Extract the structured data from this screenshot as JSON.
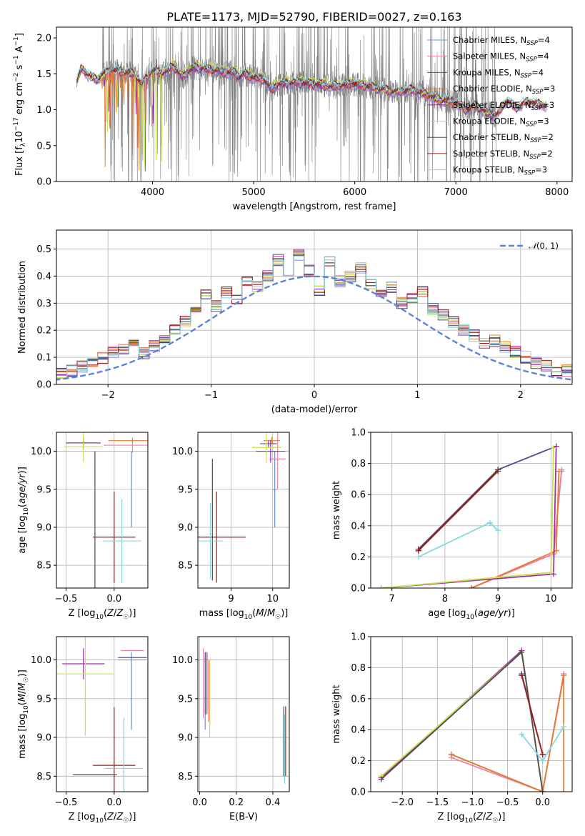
{
  "page_title": "PLATE=1173, MJD=52790, FIBERID=0027, z=0.163",
  "colors": {
    "Chabrier MILES": "#6a8fd8",
    "Salpeter MILES": "#f07fa8",
    "Kroupa MILES": "#4d4d8f",
    "Chabrier ELODIE": "#e87a2a",
    "Salpeter ELODIE": "#a12ca6",
    "Kroupa ELODIE": "#c8e24a",
    "Chabrier STELIB": "#4d4d4d",
    "Salpeter STELIB": "#a11b1b",
    "Kroupa STELIB": "#86d8e0",
    "data": "#808080",
    "normal": "#5b84d8"
  },
  "chart_data": [
    {
      "id": "spectrum",
      "type": "line",
      "title": "PLATE=1173, MJD=52790, FIBERID=0027, z=0.163",
      "xlabel": "wavelength [Angstrom, rest frame]",
      "ylabel": "Flux [f_λ 10^-17 erg cm^-2 s^-1 A^-1]",
      "xlim": [
        3050,
        8150
      ],
      "ylim": [
        0,
        2.15
      ],
      "xticks": [
        4000,
        5000,
        6000,
        7000,
        8000
      ],
      "yticks": [
        0.0,
        0.5,
        1.0,
        1.5,
        2.0
      ],
      "legend_position": "upper-right",
      "legend": [
        {
          "name": "Chabrier MILES",
          "nssp": "4"
        },
        {
          "name": "Salpeter MILES",
          "nssp": "4"
        },
        {
          "name": "Kroupa MILES",
          "nssp": "4"
        },
        {
          "name": "Chabrier ELODIE",
          "nssp": "3"
        },
        {
          "name": "Salpeter ELODIE",
          "nssp": "3"
        },
        {
          "name": "Kroupa ELODIE",
          "nssp": "3"
        },
        {
          "name": "Chabrier STELIB",
          "nssp": "2"
        },
        {
          "name": "Salpeter STELIB",
          "nssp": "2"
        },
        {
          "name": "Kroupa STELIB",
          "nssp": "3"
        }
      ],
      "continuum": {
        "x": [
          3250,
          3300,
          3350,
          3400,
          3450,
          3500,
          3600,
          3700,
          3800,
          3900,
          4000,
          4100,
          4200,
          4300,
          4400,
          4500,
          4600,
          4700,
          4800,
          4861,
          4900,
          5000,
          5100,
          5175,
          5250,
          5400,
          5600,
          5800,
          6000,
          6200,
          6400,
          6563,
          6700,
          6800,
          6900,
          7000,
          7100,
          7200,
          7300,
          7400,
          7500,
          7600,
          7700,
          7800,
          7900
        ],
        "y": [
          1.38,
          1.58,
          1.5,
          1.45,
          1.42,
          1.48,
          1.55,
          1.52,
          1.5,
          1.35,
          1.55,
          1.5,
          1.6,
          1.45,
          1.58,
          1.57,
          1.55,
          1.52,
          1.52,
          1.45,
          1.5,
          1.45,
          1.42,
          1.28,
          1.35,
          1.38,
          1.35,
          1.32,
          1.36,
          1.3,
          1.25,
          1.27,
          1.22,
          1.15,
          1.12,
          1.1,
          1.0,
          1.05,
          0.95,
          0.92,
          1.12,
          1.02,
          1.12,
          1.08,
          1.05
        ]
      },
      "data_noise_start": 3500,
      "data_noise_end": 7400
    },
    {
      "id": "residuals",
      "type": "histogram",
      "xlabel": "(data-model)/error",
      "ylabel": "Normed distribution",
      "xlim": [
        -2.5,
        2.5
      ],
      "ylim": [
        0,
        0.57
      ],
      "xticks": [
        -2,
        -1,
        0,
        1,
        2
      ],
      "yticks": [
        0.0,
        0.1,
        0.2,
        0.3,
        0.4,
        0.5
      ],
      "legend_position": "upper-right",
      "legend": [
        {
          "name": "N(0,1)",
          "style": "dashed"
        }
      ],
      "bin_width": 0.1,
      "values": [
        0.018,
        0.012,
        0.024,
        0.02,
        0.028,
        0.035,
        0.042,
        0.04,
        0.05,
        0.066,
        0.075,
        0.098,
        0.12,
        0.13,
        0.15,
        0.115,
        0.14,
        0.165,
        0.2,
        0.23,
        0.28,
        0.33,
        0.29,
        0.34,
        0.31,
        0.38,
        0.36,
        0.4,
        0.46,
        0.42,
        0.48,
        0.42,
        0.35,
        0.45,
        0.38,
        0.4,
        0.43,
        0.37,
        0.33,
        0.36,
        0.3,
        0.32,
        0.34,
        0.28,
        0.26,
        0.23,
        0.2,
        0.18,
        0.15,
        0.16,
        0.14,
        0.12,
        0.1,
        0.08,
        0.07,
        0.05,
        0.05,
        0.045,
        0.08,
        0.09,
        0.05,
        0.04,
        0.03,
        0.025,
        0.04,
        0.03,
        0.02
      ],
      "hist_x0": -3.2
    },
    {
      "id": "z-age",
      "type": "errorbar",
      "xlabel": "Z [log10(Z/Z☉)]",
      "ylabel": "age [log10(age/yr)]",
      "xlim": [
        -0.6,
        0.35
      ],
      "ylim": [
        8.2,
        10.25
      ],
      "xticks": [
        -0.5,
        0.0
      ],
      "yticks": [
        8.5,
        9.0,
        9.5,
        10.0
      ],
      "points": [
        {
          "model": "Chabrier MILES",
          "x": 0.18,
          "y": 9.5,
          "xerr": 0.0,
          "yerr": 0.5
        },
        {
          "model": "Salpeter MILES",
          "x": 0.19,
          "y": 10.08,
          "xerr": 0.3,
          "yerr": 0.1
        },
        {
          "model": "Kroupa MILES",
          "x": -0.32,
          "y": 10.1,
          "xerr": 0.0,
          "yerr": 0.08
        },
        {
          "model": "Chabrier ELODIE",
          "x": 0.19,
          "y": 10.14,
          "xerr": 0.25,
          "yerr": 0.03
        },
        {
          "model": "Salpeter ELODIE",
          "x": -0.32,
          "y": 10.11,
          "xerr": 0.18,
          "yerr": 0.05
        },
        {
          "model": "Kroupa ELODIE",
          "x": -0.32,
          "y": 10.06,
          "xerr": 0.2,
          "yerr": 0.2
        },
        {
          "model": "Chabrier STELIB",
          "x": -0.2,
          "y": 9.1,
          "xerr": 0.0,
          "yerr": 0.9
        },
        {
          "model": "Salpeter STELIB",
          "x": 0.0,
          "y": 8.87,
          "xerr": 0.22,
          "yerr": 0.6
        },
        {
          "model": "Kroupa STELIB",
          "x": 0.08,
          "y": 8.82,
          "xerr": 0.2,
          "yerr": 0.55
        }
      ]
    },
    {
      "id": "mass-age",
      "type": "errorbar",
      "xlabel": "mass [log10(M/M☉)]",
      "ylabel": "",
      "xlim": [
        8.2,
        10.4
      ],
      "ylim": [
        8.2,
        10.25
      ],
      "xticks": [
        9,
        10
      ],
      "yticks": [
        8.5,
        9.0,
        9.5,
        10.0
      ],
      "points": [
        {
          "model": "Chabrier MILES",
          "x": 10.05,
          "y": 9.5,
          "xerr": 0.05,
          "yerr": 0.5
        },
        {
          "model": "Salpeter MILES",
          "x": 10.12,
          "y": 9.9,
          "xerr": 0.2,
          "yerr": 0.4
        },
        {
          "model": "Kroupa MILES",
          "x": 9.9,
          "y": 10.1,
          "xerr": 0.2,
          "yerr": 0.05
        },
        {
          "model": "Chabrier ELODIE",
          "x": 9.98,
          "y": 10.14,
          "xerr": 0.2,
          "yerr": 0.05
        },
        {
          "model": "Salpeter ELODIE",
          "x": 9.95,
          "y": 10.0,
          "xerr": 0.35,
          "yerr": 0.15
        },
        {
          "model": "Kroupa ELODIE",
          "x": 9.85,
          "y": 10.05,
          "xerr": 0.35,
          "yerr": 0.2
        },
        {
          "model": "Chabrier STELIB",
          "x": 8.55,
          "y": 9.1,
          "xerr": 0.0,
          "yerr": 0.8
        },
        {
          "model": "Salpeter STELIB",
          "x": 8.65,
          "y": 8.87,
          "xerr": 0.7,
          "yerr": 0.6
        },
        {
          "model": "Kroupa STELIB",
          "x": 8.5,
          "y": 8.82,
          "xerr": 0.3,
          "yerr": 0.5
        }
      ]
    },
    {
      "id": "age-weight",
      "type": "line",
      "xlabel": "age [log10(age/yr)]",
      "ylabel": "mass weight",
      "xlim": [
        6.6,
        10.4
      ],
      "ylim": [
        0,
        1.0
      ],
      "xticks": [
        7,
        8,
        9,
        10
      ],
      "yticks": [
        0.0,
        0.2,
        0.4,
        0.6,
        0.8,
        1.0
      ],
      "series": [
        {
          "model": "Chabrier MILES",
          "x": [
            8.5,
            10.05,
            10.2
          ],
          "y": [
            0.0,
            0.22,
            0.75
          ]
        },
        {
          "model": "Salpeter MILES",
          "x": [
            8.5,
            10.05,
            10.2
          ],
          "y": [
            0.0,
            0.22,
            0.76
          ]
        },
        {
          "model": "Kroupa MILES",
          "x": [
            7.5,
            9.0,
            10.1
          ],
          "y": [
            0.24,
            0.76,
            0.91
          ]
        },
        {
          "model": "Chabrier ELODIE",
          "x": [
            8.5,
            10.1,
            10.15
          ],
          "y": [
            0.0,
            0.24,
            0.75
          ]
        },
        {
          "model": "Salpeter ELODIE",
          "x": [
            6.8,
            10.05,
            10.1
          ],
          "y": [
            0.0,
            0.09,
            0.91
          ]
        },
        {
          "model": "Kroupa ELODIE",
          "x": [
            6.8,
            10.0,
            10.05
          ],
          "y": [
            0.0,
            0.1,
            0.9
          ]
        },
        {
          "model": "Chabrier STELIB",
          "x": [
            7.5,
            9.0
          ],
          "y": [
            0.25,
            0.76
          ]
        },
        {
          "model": "Salpeter STELIB",
          "x": [
            7.5,
            9.0
          ],
          "y": [
            0.24,
            0.75
          ]
        },
        {
          "model": "Kroupa STELIB",
          "x": [
            7.5,
            8.85,
            9.0
          ],
          "y": [
            0.2,
            0.42,
            0.37
          ]
        }
      ]
    },
    {
      "id": "z-mass",
      "type": "errorbar",
      "xlabel": "Z [log10(Z/Z☉)]",
      "ylabel": "mass [log10(M/M☉)]",
      "xlim": [
        -0.6,
        0.35
      ],
      "ylim": [
        8.3,
        10.3
      ],
      "xticks": [
        -0.5,
        0.0
      ],
      "yticks": [
        8.5,
        9.0,
        9.5,
        10.0
      ],
      "points": [
        {
          "model": "Chabrier MILES",
          "x": 0.18,
          "y": 9.6,
          "xerr": 0.0,
          "yerr": 0.5
        },
        {
          "model": "Salpeter MILES",
          "x": 0.19,
          "y": 10.12,
          "xerr": 0.12,
          "yerr": 0.0
        },
        {
          "model": "Kroupa MILES",
          "x": 0.19,
          "y": 10.03,
          "xerr": 0.15,
          "yerr": 0.0
        },
        {
          "model": "Chabrier ELODIE",
          "x": 0.19,
          "y": 10.0,
          "xerr": 0.15,
          "yerr": 0.0
        },
        {
          "model": "Salpeter ELODIE",
          "x": -0.32,
          "y": 9.95,
          "xerr": 0.22,
          "yerr": 0.2
        },
        {
          "model": "Kroupa ELODIE",
          "x": -0.3,
          "y": 9.82,
          "xerr": 0.3,
          "yerr": 0.8
        },
        {
          "model": "Chabrier STELIB",
          "x": -0.2,
          "y": 8.52,
          "xerr": 0.23,
          "yerr": 0.0
        },
        {
          "model": "Salpeter STELIB",
          "x": 0.0,
          "y": 8.64,
          "xerr": 0.22,
          "yerr": 0.75
        },
        {
          "model": "Kroupa STELIB",
          "x": 0.1,
          "y": 8.6,
          "xerr": 0.2,
          "yerr": 0.65
        }
      ]
    },
    {
      "id": "ebv-mass",
      "type": "errorbar",
      "xlabel": "E(B-V)",
      "ylabel": "",
      "xlim": [
        -0.01,
        0.49
      ],
      "ylim": [
        8.3,
        10.3
      ],
      "xticks": [
        0.0,
        0.2,
        0.4
      ],
      "yticks": [
        8.5,
        9.0,
        9.5,
        10.0
      ],
      "points": [
        {
          "model": "Chabrier MILES",
          "x": 0.03,
          "y": 9.6,
          "xerr": 0.0,
          "yerr": 0.5
        },
        {
          "model": "Salpeter MILES",
          "x": 0.02,
          "y": 9.7,
          "xerr": 0.0,
          "yerr": 0.45
        },
        {
          "model": "Kroupa MILES",
          "x": 0.03,
          "y": 9.7,
          "xerr": 0.0,
          "yerr": 0.4
        },
        {
          "model": "Chabrier ELODIE",
          "x": 0.05,
          "y": 9.6,
          "xerr": 0.0,
          "yerr": 0.4
        },
        {
          "model": "Salpeter ELODIE",
          "x": 0.04,
          "y": 9.7,
          "xerr": 0.0,
          "yerr": 0.4
        },
        {
          "model": "Kroupa ELODIE",
          "x": 0.055,
          "y": 9.5,
          "xerr": 0.0,
          "yerr": 0.5
        },
        {
          "model": "Chabrier STELIB",
          "x": 0.46,
          "y": 8.95,
          "xerr": 0.0,
          "yerr": 0.45
        },
        {
          "model": "Salpeter STELIB",
          "x": 0.47,
          "y": 8.95,
          "xerr": 0.0,
          "yerr": 0.45
        },
        {
          "model": "Kroupa STELIB",
          "x": 0.465,
          "y": 8.85,
          "xerr": 0.0,
          "yerr": 0.45
        }
      ]
    },
    {
      "id": "z-weight",
      "type": "line",
      "xlabel": "Z [log10(Z/Z☉)]",
      "ylabel": "mass weight",
      "xlim": [
        -2.45,
        0.42
      ],
      "ylim": [
        0,
        1.0
      ],
      "xticks": [
        -2.0,
        -1.5,
        -1.0,
        -0.5,
        0.0
      ],
      "yticks": [
        0.0,
        0.2,
        0.4,
        0.6,
        0.8,
        1.0
      ],
      "series": [
        {
          "model": "Chabrier MILES",
          "x": [
            -1.3,
            0.0,
            0.3
          ],
          "y": [
            0.24,
            0.0,
            0.75
          ]
        },
        {
          "model": "Salpeter MILES",
          "x": [
            -1.3,
            0.0,
            0.3
          ],
          "y": [
            0.22,
            0.0,
            0.76
          ]
        },
        {
          "model": "Kroupa MILES",
          "x": [
            -0.3,
            0.0
          ],
          "y": [
            0.76,
            0.24
          ]
        },
        {
          "model": "Chabrier ELODIE",
          "x": [
            -1.3,
            0.0,
            0.3,
            0.3
          ],
          "y": [
            0.24,
            0.0,
            0.75,
            0.0
          ]
        },
        {
          "model": "Salpeter ELODIE",
          "x": [
            -2.3,
            -0.3,
            0.0
          ],
          "y": [
            0.09,
            0.91,
            0.0
          ]
        },
        {
          "model": "Kroupa ELODIE",
          "x": [
            -2.3,
            -0.3,
            0.0
          ],
          "y": [
            0.1,
            0.9,
            0.0
          ]
        },
        {
          "model": "Chabrier STELIB",
          "x": [
            -2.3,
            -0.3,
            0.0
          ],
          "y": [
            0.08,
            0.9,
            0.0
          ]
        },
        {
          "model": "Salpeter STELIB",
          "x": [
            -0.3,
            0.0
          ],
          "y": [
            0.75,
            0.24
          ]
        },
        {
          "model": "Kroupa STELIB",
          "x": [
            -0.3,
            0.0,
            0.3
          ],
          "y": [
            0.37,
            0.2,
            0.42
          ]
        }
      ]
    }
  ]
}
